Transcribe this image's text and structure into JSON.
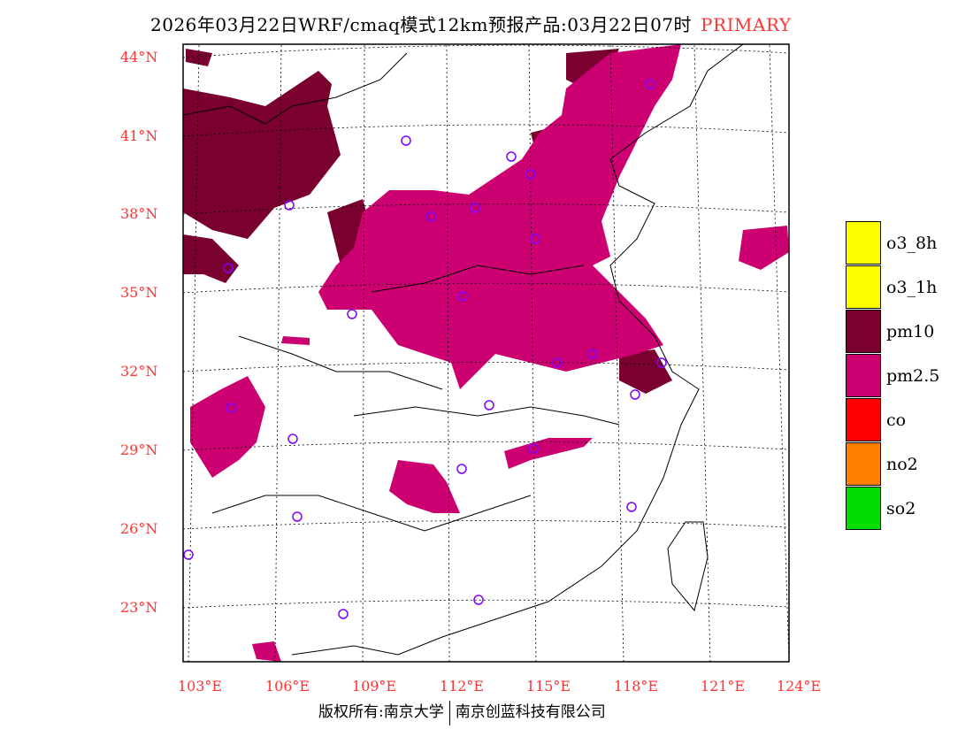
{
  "title": {
    "text": "2026年03月22日WRF/cmaq模式12km预报产品:03月22日07时",
    "tag": "PRIMARY",
    "tag_color": "#ff3333"
  },
  "lat_labels": [
    "44°N",
    "41°N",
    "38°N",
    "35°N",
    "32°N",
    "29°N",
    "26°N",
    "23°N"
  ],
  "lon_labels": [
    "103°E",
    "106°E",
    "109°E",
    "112°E",
    "115°E",
    "118°E",
    "121°E",
    "124°E"
  ],
  "legend": [
    {
      "label": "o3_8h",
      "color": "#ffff00"
    },
    {
      "label": "o3_1h",
      "color": "#ffff00"
    },
    {
      "label": "pm10",
      "color": "#7a0030"
    },
    {
      "label": "pm2.5",
      "color": "#cc0070"
    },
    {
      "label": "co",
      "color": "#ff0000"
    },
    {
      "label": "no2",
      "color": "#ff8000"
    },
    {
      "label": "so2",
      "color": "#00dd00"
    }
  ],
  "footer": {
    "left": "版权所有:南京大学",
    "right": "南京创蓝科技有限公司"
  }
}
